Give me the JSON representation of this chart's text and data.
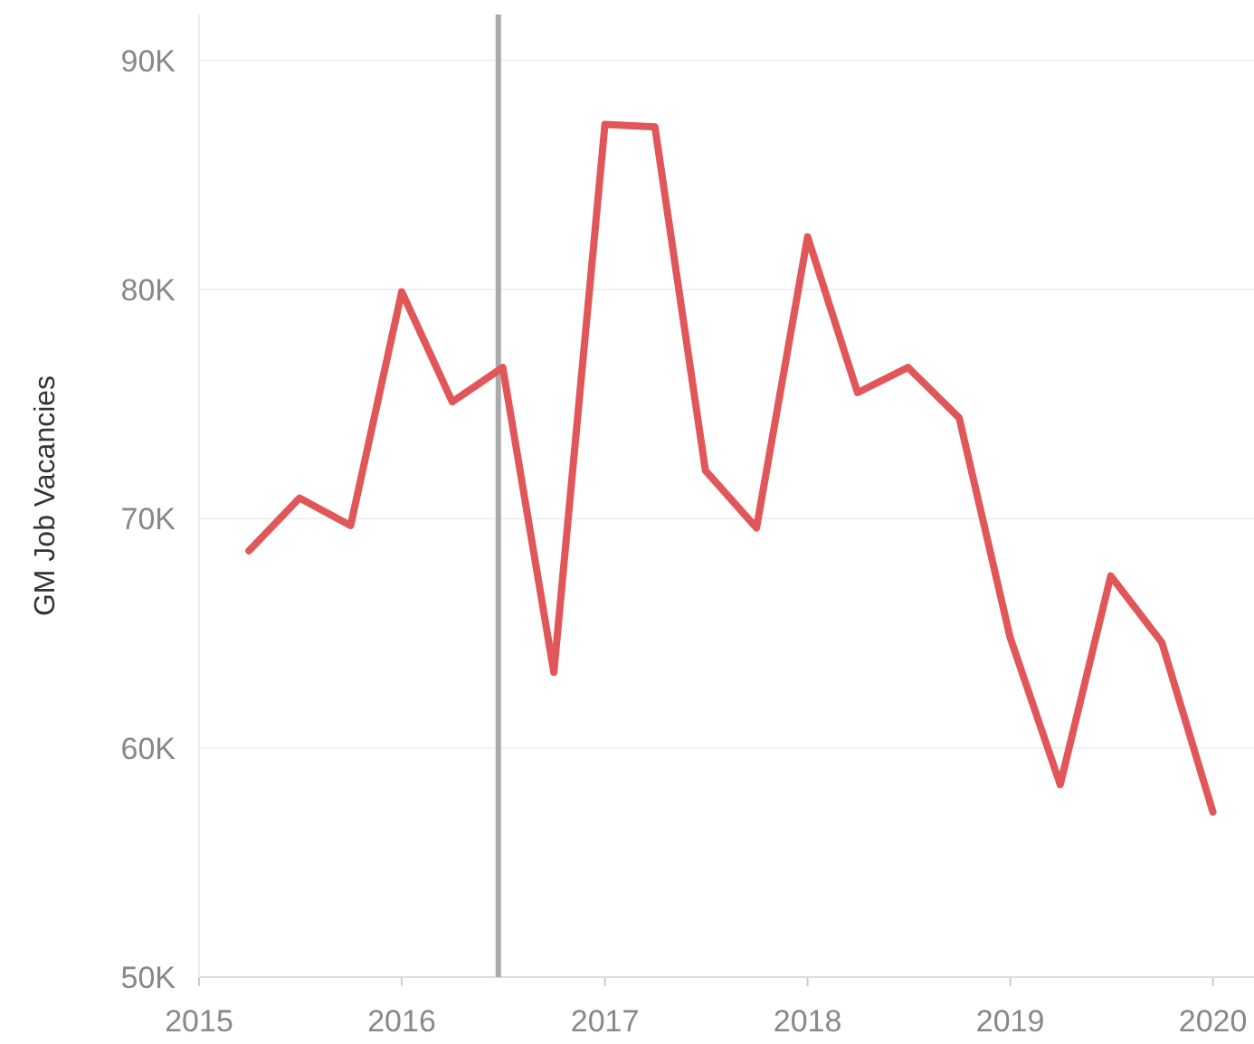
{
  "chart_data": {
    "type": "line",
    "ylabel": "GM Job Vacancies",
    "x": [
      "2015-04",
      "2015-07",
      "2015-10",
      "2016-01",
      "2016-04",
      "2016-07",
      "2016-10",
      "2017-01",
      "2017-04",
      "2017-07",
      "2017-10",
      "2018-01",
      "2018-04",
      "2018-07",
      "2018-10",
      "2019-01",
      "2019-04",
      "2019-07",
      "2019-10",
      "2020-01"
    ],
    "series": [
      {
        "color": "#e15759",
        "values": [
          68600,
          70900,
          69700,
          79900,
          75100,
          76600,
          63300,
          87200,
          87100,
          72100,
          69600,
          82300,
          75500,
          76600,
          74400,
          64800,
          58400,
          67500,
          64600,
          57200
        ]
      }
    ],
    "xlim": [
      "2015-01",
      "2020-03-15"
    ],
    "xticks": [
      {
        "value": "2015-01",
        "label": "2015"
      },
      {
        "value": "2016-01",
        "label": "2016"
      },
      {
        "value": "2017-01",
        "label": "2017"
      },
      {
        "value": "2018-01",
        "label": "2018"
      },
      {
        "value": "2019-01",
        "label": "2019"
      },
      {
        "value": "2020-01",
        "label": "2020"
      }
    ],
    "ylim": [
      50000,
      92000
    ],
    "yticks": [
      {
        "value": 50000,
        "label": "50K"
      },
      {
        "value": 60000,
        "label": "60K"
      },
      {
        "value": 70000,
        "label": "70K"
      },
      {
        "value": 80000,
        "label": "80K"
      },
      {
        "value": 90000,
        "label": "90K"
      }
    ],
    "ref_lines": [
      {
        "axis": "x",
        "value": "2016-06-23",
        "color": "#aaaaaa"
      }
    ],
    "grid": "y",
    "marker": "none",
    "line_style": "solid"
  }
}
